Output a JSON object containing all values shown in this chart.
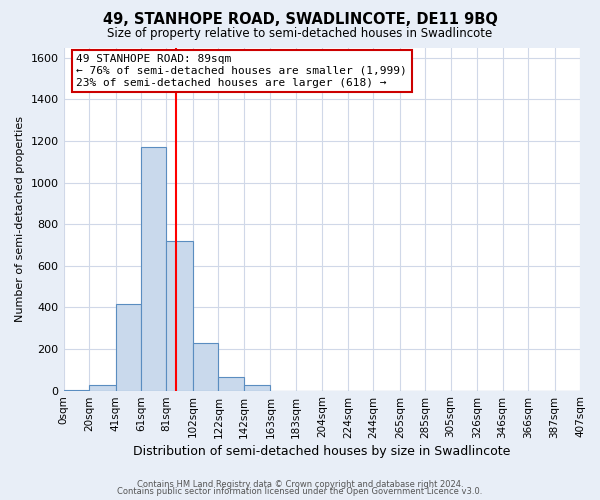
{
  "title": "49, STANHOPE ROAD, SWADLINCOTE, DE11 9BQ",
  "subtitle": "Size of property relative to semi-detached houses in Swadlincote",
  "xlabel": "Distribution of semi-detached houses by size in Swadlincote",
  "ylabel": "Number of semi-detached properties",
  "bar_values": [
    5,
    25,
    415,
    1170,
    720,
    230,
    65,
    25,
    0,
    0,
    0,
    0,
    0,
    0,
    0,
    0,
    0,
    0,
    0,
    0
  ],
  "bin_labels": [
    "0sqm",
    "20sqm",
    "41sqm",
    "61sqm",
    "81sqm",
    "102sqm",
    "122sqm",
    "142sqm",
    "163sqm",
    "183sqm",
    "204sqm",
    "224sqm",
    "244sqm",
    "265sqm",
    "285sqm",
    "305sqm",
    "326sqm",
    "346sqm",
    "366sqm",
    "387sqm",
    "407sqm"
  ],
  "bin_edges": [
    0,
    20,
    41,
    61,
    81,
    102,
    122,
    142,
    163,
    183,
    204,
    224,
    244,
    265,
    285,
    305,
    326,
    346,
    366,
    387,
    407
  ],
  "bar_color": "#c9d9ec",
  "bar_edge_color": "#5a8dc0",
  "red_line_x": 89,
  "ylim": [
    0,
    1650
  ],
  "yticks": [
    0,
    200,
    400,
    600,
    800,
    1000,
    1200,
    1400,
    1600
  ],
  "annotation_title": "49 STANHOPE ROAD: 89sqm",
  "annotation_line1": "← 76% of semi-detached houses are smaller (1,999)",
  "annotation_line2": "23% of semi-detached houses are larger (618) →",
  "annotation_box_color": "#ffffff",
  "annotation_box_edge": "#cc0000",
  "grid_color": "#d0d8e8",
  "bg_color": "#e8eef7",
  "plot_bg_color": "#ffffff",
  "footer1": "Contains HM Land Registry data © Crown copyright and database right 2024.",
  "footer2": "Contains public sector information licensed under the Open Government Licence v3.0."
}
